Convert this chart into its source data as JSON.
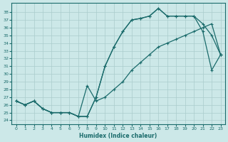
{
  "xlabel": "Humidex (Indice chaleur)",
  "bg_color": "#cce8e8",
  "grid_color": "#aacccc",
  "line_color": "#1a6b6b",
  "xlim": [
    -0.5,
    23.5
  ],
  "ylim": [
    23.5,
    39.2
  ],
  "xticks": [
    0,
    1,
    2,
    3,
    4,
    5,
    6,
    7,
    8,
    9,
    10,
    11,
    12,
    13,
    14,
    15,
    16,
    17,
    18,
    19,
    20,
    21,
    22,
    23
  ],
  "yticks": [
    24,
    25,
    26,
    27,
    28,
    29,
    30,
    31,
    32,
    33,
    34,
    35,
    36,
    37,
    38
  ],
  "curve_top_x": [
    0,
    1,
    2,
    3,
    4,
    5,
    6,
    7,
    8,
    9,
    10,
    11,
    12,
    13,
    14,
    15,
    16,
    17,
    18,
    19,
    20,
    21,
    22,
    23
  ],
  "curve_top_y": [
    26.5,
    26.0,
    26.5,
    25.5,
    25.0,
    25.0,
    25.0,
    24.5,
    24.5,
    27.0,
    31.0,
    33.5,
    35.5,
    37.0,
    37.2,
    37.5,
    38.5,
    37.5,
    37.5,
    37.5,
    37.5,
    36.5,
    35.0,
    32.5
  ],
  "curve_mid_x": [
    0,
    1,
    2,
    3,
    4,
    5,
    6,
    7,
    8,
    9,
    10,
    11,
    12,
    13,
    14,
    15,
    16,
    17,
    18,
    19,
    20,
    21,
    22,
    23
  ],
  "curve_mid_y": [
    26.5,
    26.0,
    26.5,
    25.5,
    25.0,
    25.0,
    25.0,
    24.5,
    24.5,
    27.0,
    31.0,
    33.5,
    35.5,
    37.0,
    37.2,
    37.5,
    38.5,
    37.5,
    37.5,
    37.5,
    37.5,
    35.5,
    30.5,
    32.5
  ],
  "curve_low_x": [
    0,
    1,
    2,
    3,
    4,
    5,
    6,
    7,
    8,
    9,
    10,
    11,
    12,
    13,
    14,
    15,
    16,
    17,
    18,
    19,
    20,
    21,
    22,
    23
  ],
  "curve_low_y": [
    26.5,
    26.0,
    26.5,
    25.5,
    25.0,
    25.0,
    25.0,
    24.5,
    28.5,
    26.5,
    27.0,
    28.0,
    29.0,
    30.5,
    31.5,
    32.5,
    33.5,
    34.0,
    34.5,
    35.0,
    35.5,
    36.0,
    36.5,
    32.5
  ]
}
